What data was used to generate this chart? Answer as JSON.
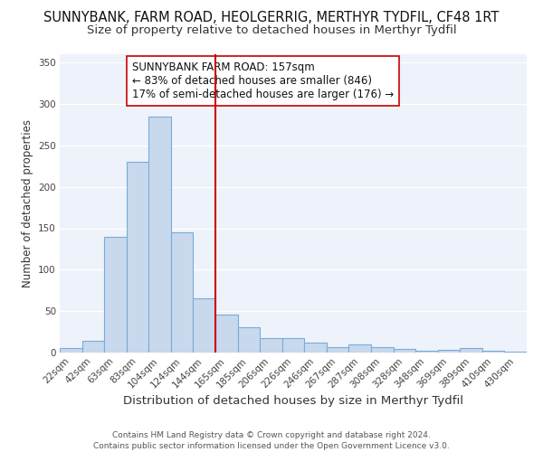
{
  "title": "SUNNYBANK, FARM ROAD, HEOLGERRIG, MERTHYR TYDFIL, CF48 1RT",
  "subtitle": "Size of property relative to detached houses in Merthyr Tydfil",
  "xlabel": "Distribution of detached houses by size in Merthyr Tydfil",
  "ylabel": "Number of detached properties",
  "footer_line1": "Contains HM Land Registry data © Crown copyright and database right 2024.",
  "footer_line2": "Contains public sector information licensed under the Open Government Licence v3.0.",
  "bar_labels": [
    "22sqm",
    "42sqm",
    "63sqm",
    "83sqm",
    "104sqm",
    "124sqm",
    "144sqm",
    "165sqm",
    "185sqm",
    "206sqm",
    "226sqm",
    "246sqm",
    "267sqm",
    "287sqm",
    "308sqm",
    "328sqm",
    "348sqm",
    "369sqm",
    "389sqm",
    "410sqm",
    "430sqm"
  ],
  "bar_values": [
    5,
    14,
    140,
    230,
    285,
    145,
    65,
    46,
    31,
    17,
    17,
    12,
    7,
    10,
    7,
    4,
    2,
    3,
    6,
    2,
    1
  ],
  "bar_color": "#c8d9ee",
  "bar_edgecolor": "#7aacd6",
  "vline_position": 6.5,
  "vline_color": "#cc0000",
  "annotation_text": "SUNNYBANK FARM ROAD: 157sqm\n← 83% of detached houses are smaller (846)\n17% of semi-detached houses are larger (176) →",
  "annotation_box_edgecolor": "#cc0000",
  "annotation_box_facecolor": "#ffffff",
  "ylim": [
    0,
    360
  ],
  "yticks": [
    0,
    50,
    100,
    150,
    200,
    250,
    300,
    350
  ],
  "title_fontsize": 10.5,
  "subtitle_fontsize": 9.5,
  "xlabel_fontsize": 9.5,
  "ylabel_fontsize": 8.5,
  "tick_fontsize": 7.5,
  "annotation_fontsize": 8.5,
  "background_color": "#eef2fa",
  "grid_color": "#ffffff",
  "fig_facecolor": "#ffffff"
}
